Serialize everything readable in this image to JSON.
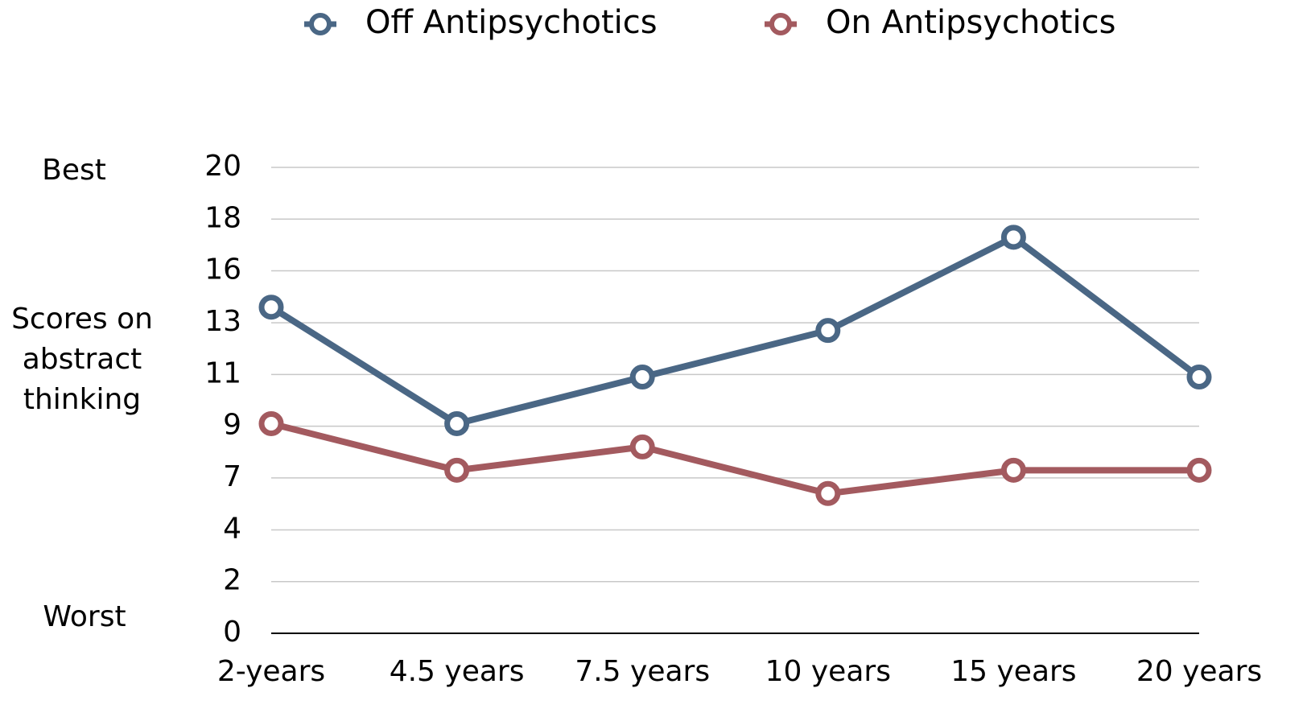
{
  "chart_data": {
    "type": "line",
    "annotations": {
      "top": "Best",
      "bottom": "Worst"
    },
    "ylabel": "Scores on abstract thinking",
    "categories": [
      "2-years",
      "4.5 years",
      "7.5 years",
      "10 years",
      "15 years",
      "20 years"
    ],
    "series": [
      {
        "name": "Off Antipsychotics",
        "color": "#4a6785",
        "values": [
          14,
          9,
          11,
          13,
          17,
          11
        ]
      },
      {
        "name": "On Antipsychotics",
        "color": "#a35a5f",
        "values": [
          9,
          7,
          8,
          6,
          7,
          7
        ]
      }
    ],
    "ylim": [
      0,
      20
    ],
    "yticks": [
      0,
      {
        "value": 2.22,
        "label": "2"
      },
      {
        "value": 4.44,
        "label": "4"
      },
      {
        "value": 6.67,
        "label": "7"
      },
      {
        "value": 8.89,
        "label": "9"
      },
      {
        "value": 11.11,
        "label": "11"
      },
      {
        "value": 13.33,
        "label": "13"
      },
      {
        "value": 15.56,
        "label": "16"
      },
      {
        "value": 17.78,
        "label": "18"
      },
      20
    ],
    "grid": true,
    "legend": "top"
  }
}
